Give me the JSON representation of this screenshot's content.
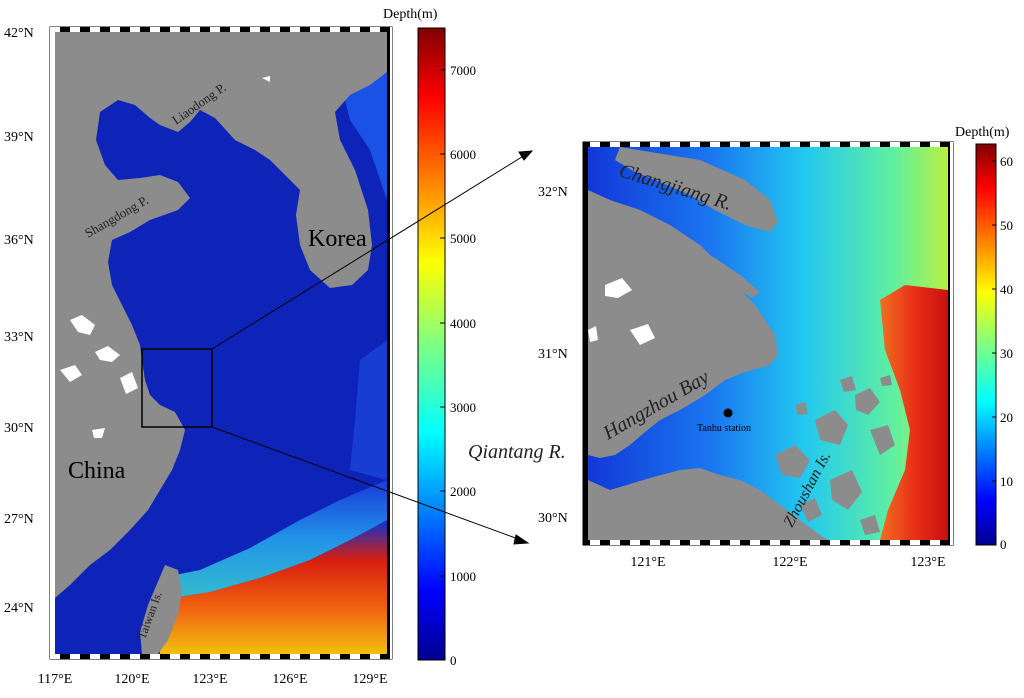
{
  "left_map": {
    "lat_labels": [
      "42°N",
      "39°N",
      "36°N",
      "33°N",
      "30°N",
      "27°N",
      "24°N"
    ],
    "lon_labels": [
      "117°E",
      "120°E",
      "123°E",
      "126°E",
      "129°E"
    ],
    "place_labels": {
      "liaodong": "Liaodong P.",
      "shandong": "Shangdong P.",
      "korea": "Korea",
      "china": "China",
      "taiwan": "Taiwan Is."
    }
  },
  "left_colorbar": {
    "title": "Depth(m)",
    "ticks": [
      "7000",
      "6000",
      "5000",
      "4000",
      "3000",
      "2000",
      "1000",
      "0"
    ]
  },
  "right_map": {
    "lat_labels": [
      "32°N",
      "31°N",
      "30°N"
    ],
    "lon_labels": [
      "121°E",
      "122°E",
      "123°E"
    ],
    "place_labels": {
      "changjiang": "Changjiang R.",
      "hangzhou": "Hangzhou Bay",
      "qiantang": "Qiantang R.",
      "tanhu": "Tanhu station",
      "zhoushan": "Zhoushan Is."
    }
  },
  "right_colorbar": {
    "title": "Depth(m)",
    "ticks": [
      "60",
      "50",
      "40",
      "30",
      "20",
      "10",
      "0"
    ]
  },
  "colors": {
    "land": "#8c8c8c",
    "shallow_sea": "#0e24b8",
    "deep_sea_warm": "#d81e10"
  }
}
